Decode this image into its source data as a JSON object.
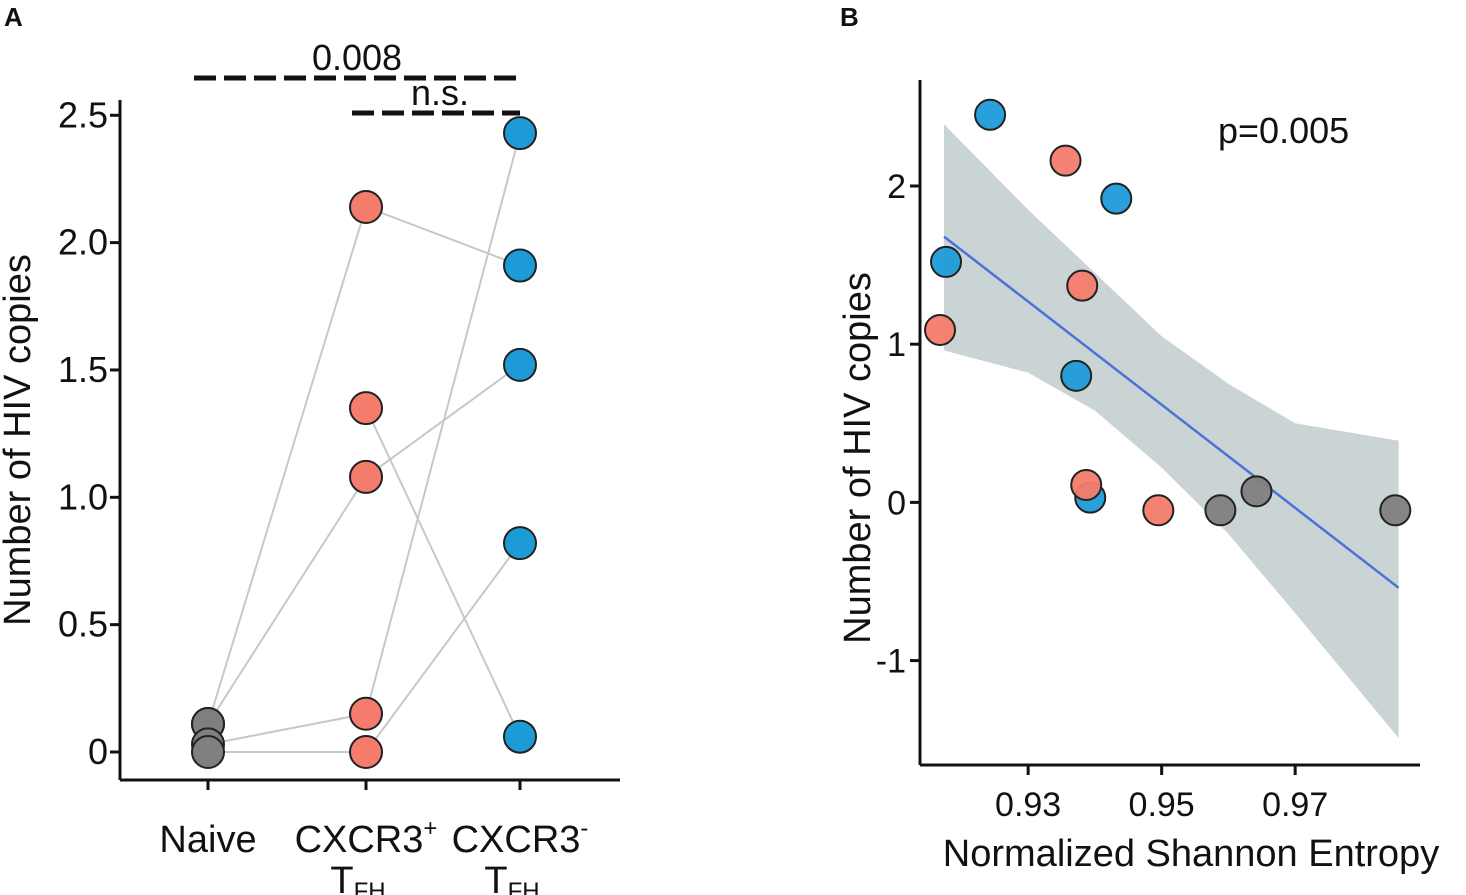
{
  "chart_data": [
    {
      "type": "paired_dot",
      "panel": "A",
      "y_label": "Number of HIV copies",
      "categories": [
        {
          "line1": "Naive"
        },
        {
          "line1": "CXCR3",
          "sup": "+",
          "line2": "T",
          "sub": "FH"
        },
        {
          "line1": "CXCR3",
          "sup": "-",
          "line2": "T",
          "sub": "FH"
        }
      ],
      "category_colors": [
        "#7f7f7f",
        "#f47c6c",
        "#1d9bd7"
      ],
      "line_color": "#c8c8c8",
      "series": [
        {
          "values": [
            0.11,
            2.14,
            1.91
          ]
        },
        {
          "values": [
            0.11,
            1.08,
            1.52
          ]
        },
        {
          "values": [
            null,
            1.35,
            0.06
          ]
        },
        {
          "values": [
            0.03,
            0.15,
            2.43
          ]
        },
        {
          "values": [
            0.0,
            0.0,
            0.82
          ]
        }
      ],
      "comparisons": [
        {
          "label": "0.008",
          "from": 0,
          "to": 2
        },
        {
          "label": "n.s.",
          "from": 1,
          "to": 2
        }
      ],
      "ylim": [
        -0.11,
        2.56
      ],
      "yticks": [
        0,
        0.5,
        {
          "value": 1,
          "label": "1.0"
        },
        1.5,
        {
          "value": 2,
          "label": "2.0"
        },
        2.5
      ]
    },
    {
      "type": "scatter",
      "panel": "B",
      "x_label": "Normalized Shannon Entropy",
      "y_label": "Number of HIV copies",
      "annotation": "p=0.005",
      "series": [
        {
          "color": "#1d9bd7",
          "x": [
            0.9243,
            0.9432,
            0.9177,
            0.9372,
            0.9393
          ],
          "values": [
            2.45,
            1.92,
            1.52,
            0.8,
            0.03
          ]
        },
        {
          "color": "#f47c6c",
          "x": [
            0.9356,
            0.9381,
            0.9168,
            0.9387,
            0.9495
          ],
          "values": [
            2.16,
            1.37,
            1.09,
            0.11,
            -0.05
          ]
        },
        {
          "color": "#7f7f7f",
          "x": [
            0.9588,
            0.9642,
            0.985
          ],
          "values": [
            -0.05,
            0.07,
            -0.05
          ]
        }
      ],
      "fit": {
        "color": "#4a72d8",
        "x": [
          0.9174,
          0.9855
        ],
        "values": [
          1.68,
          -0.54
        ]
      },
      "band": {
        "color": "#a9b8b8",
        "x": [
          0.9174,
          0.93,
          0.94,
          0.95,
          0.96,
          0.97,
          0.9855
        ],
        "upper": [
          2.39,
          1.85,
          1.45,
          1.05,
          0.75,
          0.5,
          0.39
        ],
        "lower": [
          0.96,
          0.82,
          0.58,
          0.22,
          -0.2,
          -0.7,
          -1.49
        ]
      },
      "xlim": [
        0.9138,
        0.9887
      ],
      "xticks": [
        0.93,
        0.95,
        0.97
      ],
      "ylim": [
        -1.66,
        2.67
      ],
      "yticks": [
        -1,
        0,
        1,
        2
      ]
    }
  ]
}
